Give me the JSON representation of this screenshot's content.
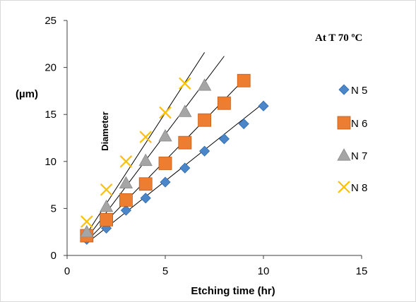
{
  "chart_data": {
    "type": "scatter",
    "title": "",
    "xlabel": "Etching time (hr)",
    "ylabel": "(µm)",
    "annotation": "Diameter",
    "legend_title": "At T 70 ºC",
    "legend_position": "right",
    "xlim": [
      0,
      15
    ],
    "ylim": [
      0,
      25
    ],
    "x_ticks": [
      "0",
      "5",
      "10",
      "15"
    ],
    "y_ticks": [
      "0",
      "5",
      "10",
      "15",
      "20",
      "25"
    ],
    "grid": false,
    "series": [
      {
        "name": "N 5",
        "marker": "diamond",
        "color": "#4a86c8",
        "x": [
          1,
          2,
          3,
          4,
          5,
          6,
          7,
          8,
          9,
          10
        ],
        "y": [
          1.7,
          2.9,
          4.8,
          6.1,
          7.8,
          9.3,
          11.1,
          12.4,
          14.0,
          15.9
        ],
        "fit": {
          "x": [
            1,
            10
          ],
          "y": [
            1.3,
            16.2
          ]
        }
      },
      {
        "name": "N 6",
        "marker": "square",
        "color": "#ed7d31",
        "x": [
          1,
          2,
          3,
          4,
          5,
          6,
          7,
          8,
          9
        ],
        "y": [
          2.1,
          3.8,
          5.9,
          7.6,
          9.8,
          12.0,
          14.4,
          16.2,
          18.6
        ],
        "fit": {
          "x": [
            1,
            9
          ],
          "y": [
            1.5,
            18.7
          ]
        }
      },
      {
        "name": "N 7",
        "marker": "triangle",
        "color": "#a5a5a5",
        "x": [
          1,
          2,
          3,
          4,
          5,
          6,
          7
        ],
        "y": [
          2.5,
          5.2,
          7.7,
          10.1,
          12.7,
          15.3,
          18.1
        ],
        "fit": {
          "x": [
            1,
            8
          ],
          "y": [
            1.8,
            21.2
          ]
        }
      },
      {
        "name": "N 8",
        "marker": "x",
        "color": "#ffc000",
        "x": [
          1,
          2,
          3,
          4,
          5,
          6
        ],
        "y": [
          3.6,
          7.0,
          10.0,
          12.6,
          15.2,
          18.3
        ],
        "fit": {
          "x": [
            1,
            7
          ],
          "y": [
            2.3,
            21.6
          ]
        }
      }
    ]
  }
}
